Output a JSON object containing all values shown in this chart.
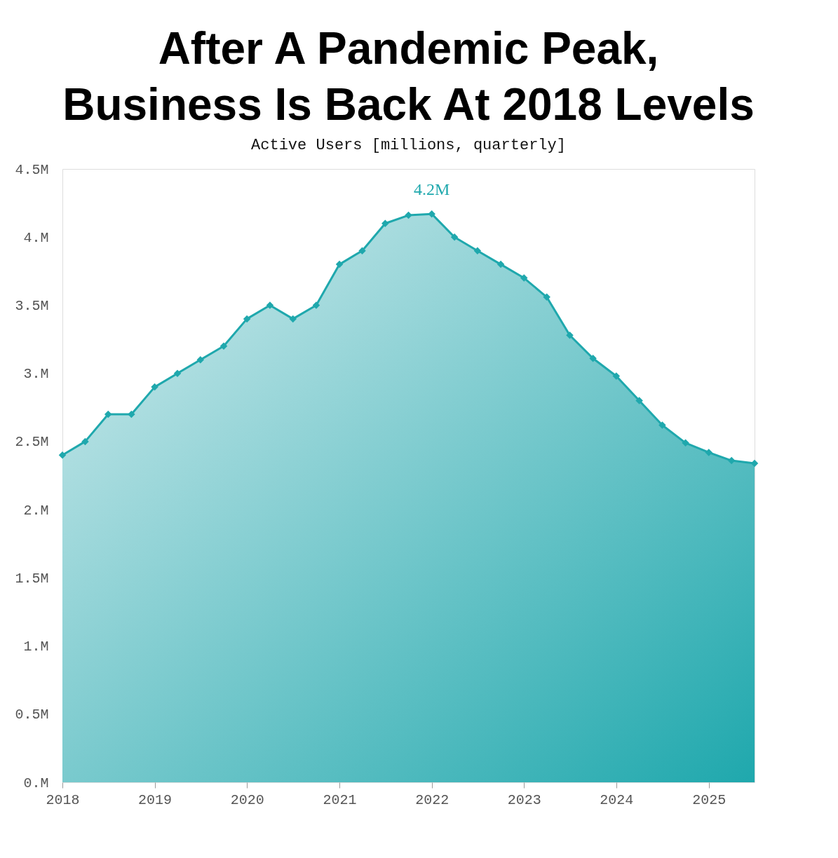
{
  "chart_data": {
    "type": "area",
    "title": [
      "After A Pandemic Peak,",
      "Business Is Back At 2018 Levels"
    ],
    "subtitle": "Active Users [millions, quarterly]",
    "x": [
      "2018-01",
      "2018-04",
      "2018-07",
      "2018-10",
      "2019-01",
      "2019-04",
      "2019-07",
      "2019-10",
      "2020-01",
      "2020-04",
      "2020-07",
      "2020-10",
      "2021-01",
      "2021-04",
      "2021-07",
      "2021-10",
      "2022-01",
      "2022-04",
      "2022-07",
      "2022-10",
      "2023-01",
      "2023-04",
      "2023-07",
      "2023-10",
      "2024-01",
      "2024-04",
      "2024-07",
      "2024-10",
      "2025-01",
      "2025-04",
      "2025-07"
    ],
    "series": [
      {
        "color": "#1fa8ad",
        "values": [
          2.4,
          2.5,
          2.7,
          2.7,
          2.9,
          3.0,
          3.1,
          3.2,
          3.4,
          3.5,
          3.4,
          3.5,
          3.8,
          3.9,
          4.1,
          4.16,
          4.17,
          4.0,
          3.9,
          3.8,
          3.7,
          3.56,
          3.28,
          3.11,
          2.98,
          2.8,
          2.62,
          2.49,
          2.42,
          2.36,
          2.34
        ],
        "value_labels": [
          null,
          null,
          null,
          null,
          null,
          null,
          null,
          null,
          null,
          null,
          null,
          null,
          null,
          null,
          null,
          null,
          "4.2M",
          null,
          null,
          null,
          null,
          null,
          null,
          null,
          null,
          null,
          null,
          null,
          null,
          null,
          null
        ]
      }
    ],
    "xlim": [
      "2018-01",
      "2025-07"
    ],
    "xticks": [
      "2018",
      "2019",
      "2020",
      "2021",
      "2022",
      "2023",
      "2024",
      "2025"
    ],
    "ylim": [
      0,
      4.5
    ],
    "yticks": [
      {
        "value": 0,
        "label": "0.M"
      },
      {
        "value": 0.5,
        "label": "0.5M"
      },
      {
        "value": 1,
        "label": "1.M"
      },
      {
        "value": 1.5,
        "label": "1.5M"
      },
      {
        "value": 2,
        "label": "2.M"
      },
      {
        "value": 2.5,
        "label": "2.5M"
      },
      {
        "value": 3,
        "label": "3.M"
      },
      {
        "value": 3.5,
        "label": "3.5M"
      },
      {
        "value": 4,
        "label": "4.M"
      },
      {
        "value": 4.5,
        "label": "4.5M"
      }
    ],
    "grid": false,
    "legend": false,
    "marker": "diamond",
    "line_style": "solid"
  }
}
